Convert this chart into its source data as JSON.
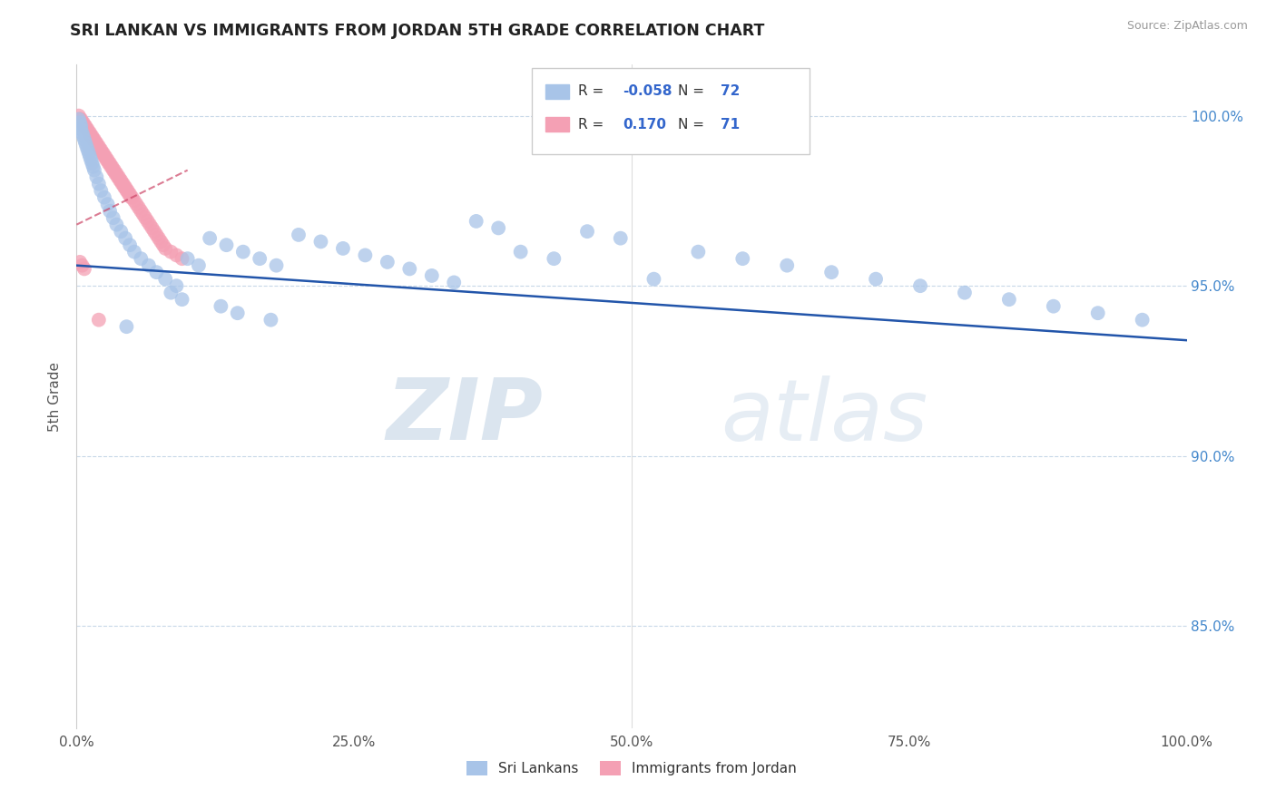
{
  "title": "SRI LANKAN VS IMMIGRANTS FROM JORDAN 5TH GRADE CORRELATION CHART",
  "source_text": "Source: ZipAtlas.com",
  "ylabel": "5th Grade",
  "xlim": [
    0.0,
    1.0
  ],
  "ylim": [
    0.82,
    1.015
  ],
  "ytick_labels": [
    "85.0%",
    "90.0%",
    "95.0%",
    "100.0%"
  ],
  "ytick_values": [
    0.85,
    0.9,
    0.95,
    1.0
  ],
  "xtick_labels": [
    "0.0%",
    "25.0%",
    "50.0%",
    "75.0%",
    "100.0%"
  ],
  "xtick_values": [
    0.0,
    0.25,
    0.5,
    0.75,
    1.0
  ],
  "sri_lankans_R": -0.058,
  "sri_lankans_N": 72,
  "jordan_R": 0.17,
  "jordan_N": 71,
  "blue_color": "#a8c4e8",
  "pink_color": "#f4a0b4",
  "blue_line_color": "#2255aa",
  "pink_line_color": "#cc4466",
  "watermark_zip": "ZIP",
  "watermark_atlas": "atlas",
  "sl_line_x0": 0.0,
  "sl_line_y0": 0.956,
  "sl_line_x1": 1.0,
  "sl_line_y1": 0.934,
  "jo_line_x0": 0.0,
  "jo_line_y0": 0.968,
  "jo_line_x1": 0.1,
  "jo_line_y1": 0.984,
  "sri_lankans_x": [
    0.002,
    0.003,
    0.004,
    0.004,
    0.005,
    0.006,
    0.007,
    0.008,
    0.009,
    0.01,
    0.011,
    0.012,
    0.013,
    0.014,
    0.015,
    0.016,
    0.018,
    0.02,
    0.022,
    0.025,
    0.028,
    0.03,
    0.033,
    0.036,
    0.04,
    0.044,
    0.048,
    0.052,
    0.058,
    0.065,
    0.072,
    0.08,
    0.09,
    0.1,
    0.11,
    0.12,
    0.135,
    0.15,
    0.165,
    0.18,
    0.2,
    0.22,
    0.24,
    0.26,
    0.28,
    0.3,
    0.32,
    0.34,
    0.36,
    0.38,
    0.4,
    0.43,
    0.46,
    0.49,
    0.52,
    0.56,
    0.6,
    0.64,
    0.68,
    0.72,
    0.76,
    0.8,
    0.84,
    0.88,
    0.92,
    0.96,
    0.085,
    0.095,
    0.13,
    0.145,
    0.175,
    0.045
  ],
  "sri_lankans_y": [
    0.999,
    0.998,
    0.997,
    0.996,
    0.995,
    0.994,
    0.993,
    0.992,
    0.991,
    0.99,
    0.989,
    0.988,
    0.987,
    0.986,
    0.985,
    0.984,
    0.982,
    0.98,
    0.978,
    0.976,
    0.974,
    0.972,
    0.97,
    0.968,
    0.966,
    0.964,
    0.962,
    0.96,
    0.958,
    0.956,
    0.954,
    0.952,
    0.95,
    0.958,
    0.956,
    0.964,
    0.962,
    0.96,
    0.958,
    0.956,
    0.965,
    0.963,
    0.961,
    0.959,
    0.957,
    0.955,
    0.953,
    0.951,
    0.969,
    0.967,
    0.96,
    0.958,
    0.966,
    0.964,
    0.952,
    0.96,
    0.958,
    0.956,
    0.954,
    0.952,
    0.95,
    0.948,
    0.946,
    0.944,
    0.942,
    0.94,
    0.948,
    0.946,
    0.944,
    0.942,
    0.94,
    0.938
  ],
  "jordan_x": [
    0.002,
    0.003,
    0.004,
    0.005,
    0.006,
    0.007,
    0.008,
    0.009,
    0.01,
    0.011,
    0.012,
    0.013,
    0.014,
    0.015,
    0.016,
    0.017,
    0.018,
    0.019,
    0.02,
    0.021,
    0.022,
    0.023,
    0.024,
    0.025,
    0.026,
    0.027,
    0.028,
    0.029,
    0.03,
    0.031,
    0.032,
    0.033,
    0.034,
    0.035,
    0.036,
    0.037,
    0.038,
    0.039,
    0.04,
    0.041,
    0.042,
    0.043,
    0.044,
    0.045,
    0.046,
    0.047,
    0.048,
    0.049,
    0.05,
    0.052,
    0.054,
    0.056,
    0.058,
    0.06,
    0.062,
    0.064,
    0.066,
    0.068,
    0.07,
    0.072,
    0.074,
    0.076,
    0.078,
    0.08,
    0.085,
    0.09,
    0.095,
    0.003,
    0.005,
    0.007,
    0.02
  ],
  "jordan_y": [
    1.0,
    0.999,
    0.999,
    0.998,
    0.998,
    0.997,
    0.997,
    0.996,
    0.996,
    0.995,
    0.995,
    0.994,
    0.994,
    0.993,
    0.993,
    0.992,
    0.992,
    0.991,
    0.991,
    0.99,
    0.99,
    0.989,
    0.989,
    0.988,
    0.988,
    0.987,
    0.987,
    0.986,
    0.986,
    0.985,
    0.985,
    0.984,
    0.984,
    0.983,
    0.983,
    0.982,
    0.982,
    0.981,
    0.981,
    0.98,
    0.98,
    0.979,
    0.979,
    0.978,
    0.978,
    0.977,
    0.977,
    0.976,
    0.976,
    0.975,
    0.974,
    0.973,
    0.972,
    0.971,
    0.97,
    0.969,
    0.968,
    0.967,
    0.966,
    0.965,
    0.964,
    0.963,
    0.962,
    0.961,
    0.96,
    0.959,
    0.958,
    0.957,
    0.956,
    0.955,
    0.94
  ]
}
